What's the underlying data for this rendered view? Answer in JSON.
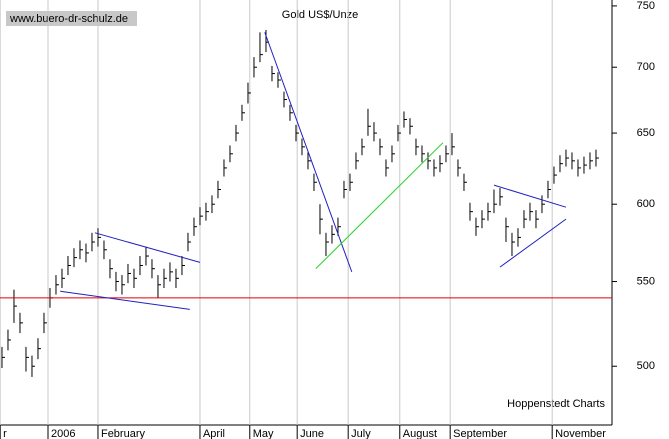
{
  "chart_data": {
    "type": "ohlc",
    "title": "Gold US$/Unze",
    "source": "www.buero-dr-schulz.de",
    "credit": "Hoppenstedt Charts",
    "color": "#000000",
    "log_scale": true,
    "ylim": [
      468,
      755
    ],
    "yticks": [
      500,
      550,
      600,
      650,
      700,
      750
    ],
    "xlim": [
      -0.33,
      101.67
    ],
    "xticks": [
      {
        "value": -0.3,
        "label": "r"
      },
      {
        "value": 7.67,
        "label": "2006"
      },
      {
        "value": 16,
        "label": "February"
      },
      {
        "value": 33,
        "label": "April"
      },
      {
        "value": 41.3,
        "label": "May"
      },
      {
        "value": 49.2,
        "label": "June"
      },
      {
        "value": 57.7,
        "label": "July"
      },
      {
        "value": 66.3,
        "label": "August"
      },
      {
        "value": 74.7,
        "label": "September"
      },
      {
        "value": 91.7,
        "label": "November"
      }
    ],
    "grid": true,
    "high": [
      511,
      521,
      545,
      531,
      511,
      506,
      516,
      531,
      546,
      554,
      558,
      566,
      571,
      576,
      574,
      581,
      584,
      576,
      564,
      556,
      554,
      561,
      558,
      566,
      572,
      564,
      554,
      558,
      562,
      558,
      566,
      581,
      591,
      598,
      601,
      606,
      616,
      631,
      641,
      656,
      671,
      688,
      708,
      728,
      730,
      701,
      696,
      681,
      671,
      656,
      646,
      636,
      621,
      600,
      581,
      586,
      591,
      616,
      621,
      636,
      646,
      668,
      658,
      646,
      631,
      641,
      656,
      666,
      661,
      646,
      641,
      636,
      631,
      634,
      641,
      650,
      631,
      621,
      601,
      591,
      596,
      601,
      610,
      611,
      591,
      581,
      584,
      596,
      601,
      596,
      606,
      616,
      626,
      634,
      638,
      636,
      631,
      633,
      636,
      638
    ],
    "low": [
      499,
      509,
      525,
      519,
      497,
      494,
      504,
      519,
      534,
      542,
      546,
      554,
      559,
      564,
      562,
      569,
      572,
      564,
      552,
      544,
      542,
      549,
      546,
      554,
      560,
      552,
      540,
      546,
      550,
      546,
      554,
      569,
      579,
      586,
      589,
      594,
      604,
      619,
      629,
      644,
      659,
      672,
      692,
      704,
      712,
      689,
      684,
      669,
      659,
      644,
      634,
      624,
      609,
      580,
      566,
      574,
      579,
      604,
      609,
      624,
      634,
      648,
      644,
      634,
      619,
      629,
      644,
      654,
      649,
      634,
      629,
      624,
      619,
      622,
      629,
      634,
      619,
      609,
      589,
      579,
      584,
      589,
      594,
      599,
      575,
      566,
      572,
      584,
      589,
      584,
      594,
      604,
      614,
      622,
      626,
      624,
      619,
      621,
      624,
      626
    ],
    "close": [
      505,
      515,
      535,
      525,
      505,
      500,
      510,
      525,
      540,
      548,
      552,
      560,
      565,
      570,
      568,
      575,
      578,
      570,
      558,
      550,
      548,
      555,
      552,
      560,
      566,
      558,
      548,
      552,
      556,
      552,
      560,
      575,
      585,
      592,
      595,
      600,
      610,
      625,
      635,
      650,
      665,
      680,
      700,
      710,
      720,
      695,
      690,
      675,
      665,
      650,
      640,
      630,
      615,
      590,
      575,
      580,
      585,
      610,
      615,
      630,
      640,
      655,
      650,
      640,
      625,
      635,
      650,
      660,
      655,
      640,
      635,
      630,
      625,
      628,
      635,
      640,
      625,
      615,
      595,
      585,
      590,
      595,
      600,
      605,
      585,
      575,
      578,
      590,
      595,
      590,
      600,
      610,
      620,
      628,
      632,
      630,
      625,
      627,
      630,
      632
    ],
    "hline": {
      "value": 540,
      "color": "#e00000"
    },
    "trendlines": [
      {
        "color": "#2020c0",
        "points": [
          [
            15.5,
            581
          ],
          [
            33,
            562
          ]
        ]
      },
      {
        "color": "#2020c0",
        "points": [
          [
            9.7,
            544
          ],
          [
            31.3,
            533
          ]
        ]
      },
      {
        "color": "#2020c0",
        "points": [
          [
            43.8,
            728
          ],
          [
            58.3,
            556
          ]
        ]
      },
      {
        "color": "#20d020",
        "points": [
          [
            52.3,
            558
          ],
          [
            73.5,
            643
          ]
        ]
      },
      {
        "color": "#2020c0",
        "points": [
          [
            82,
            613
          ],
          [
            94,
            598
          ]
        ]
      },
      {
        "color": "#2020c0",
        "points": [
          [
            83,
            559
          ],
          [
            94,
            590
          ]
        ]
      }
    ]
  }
}
